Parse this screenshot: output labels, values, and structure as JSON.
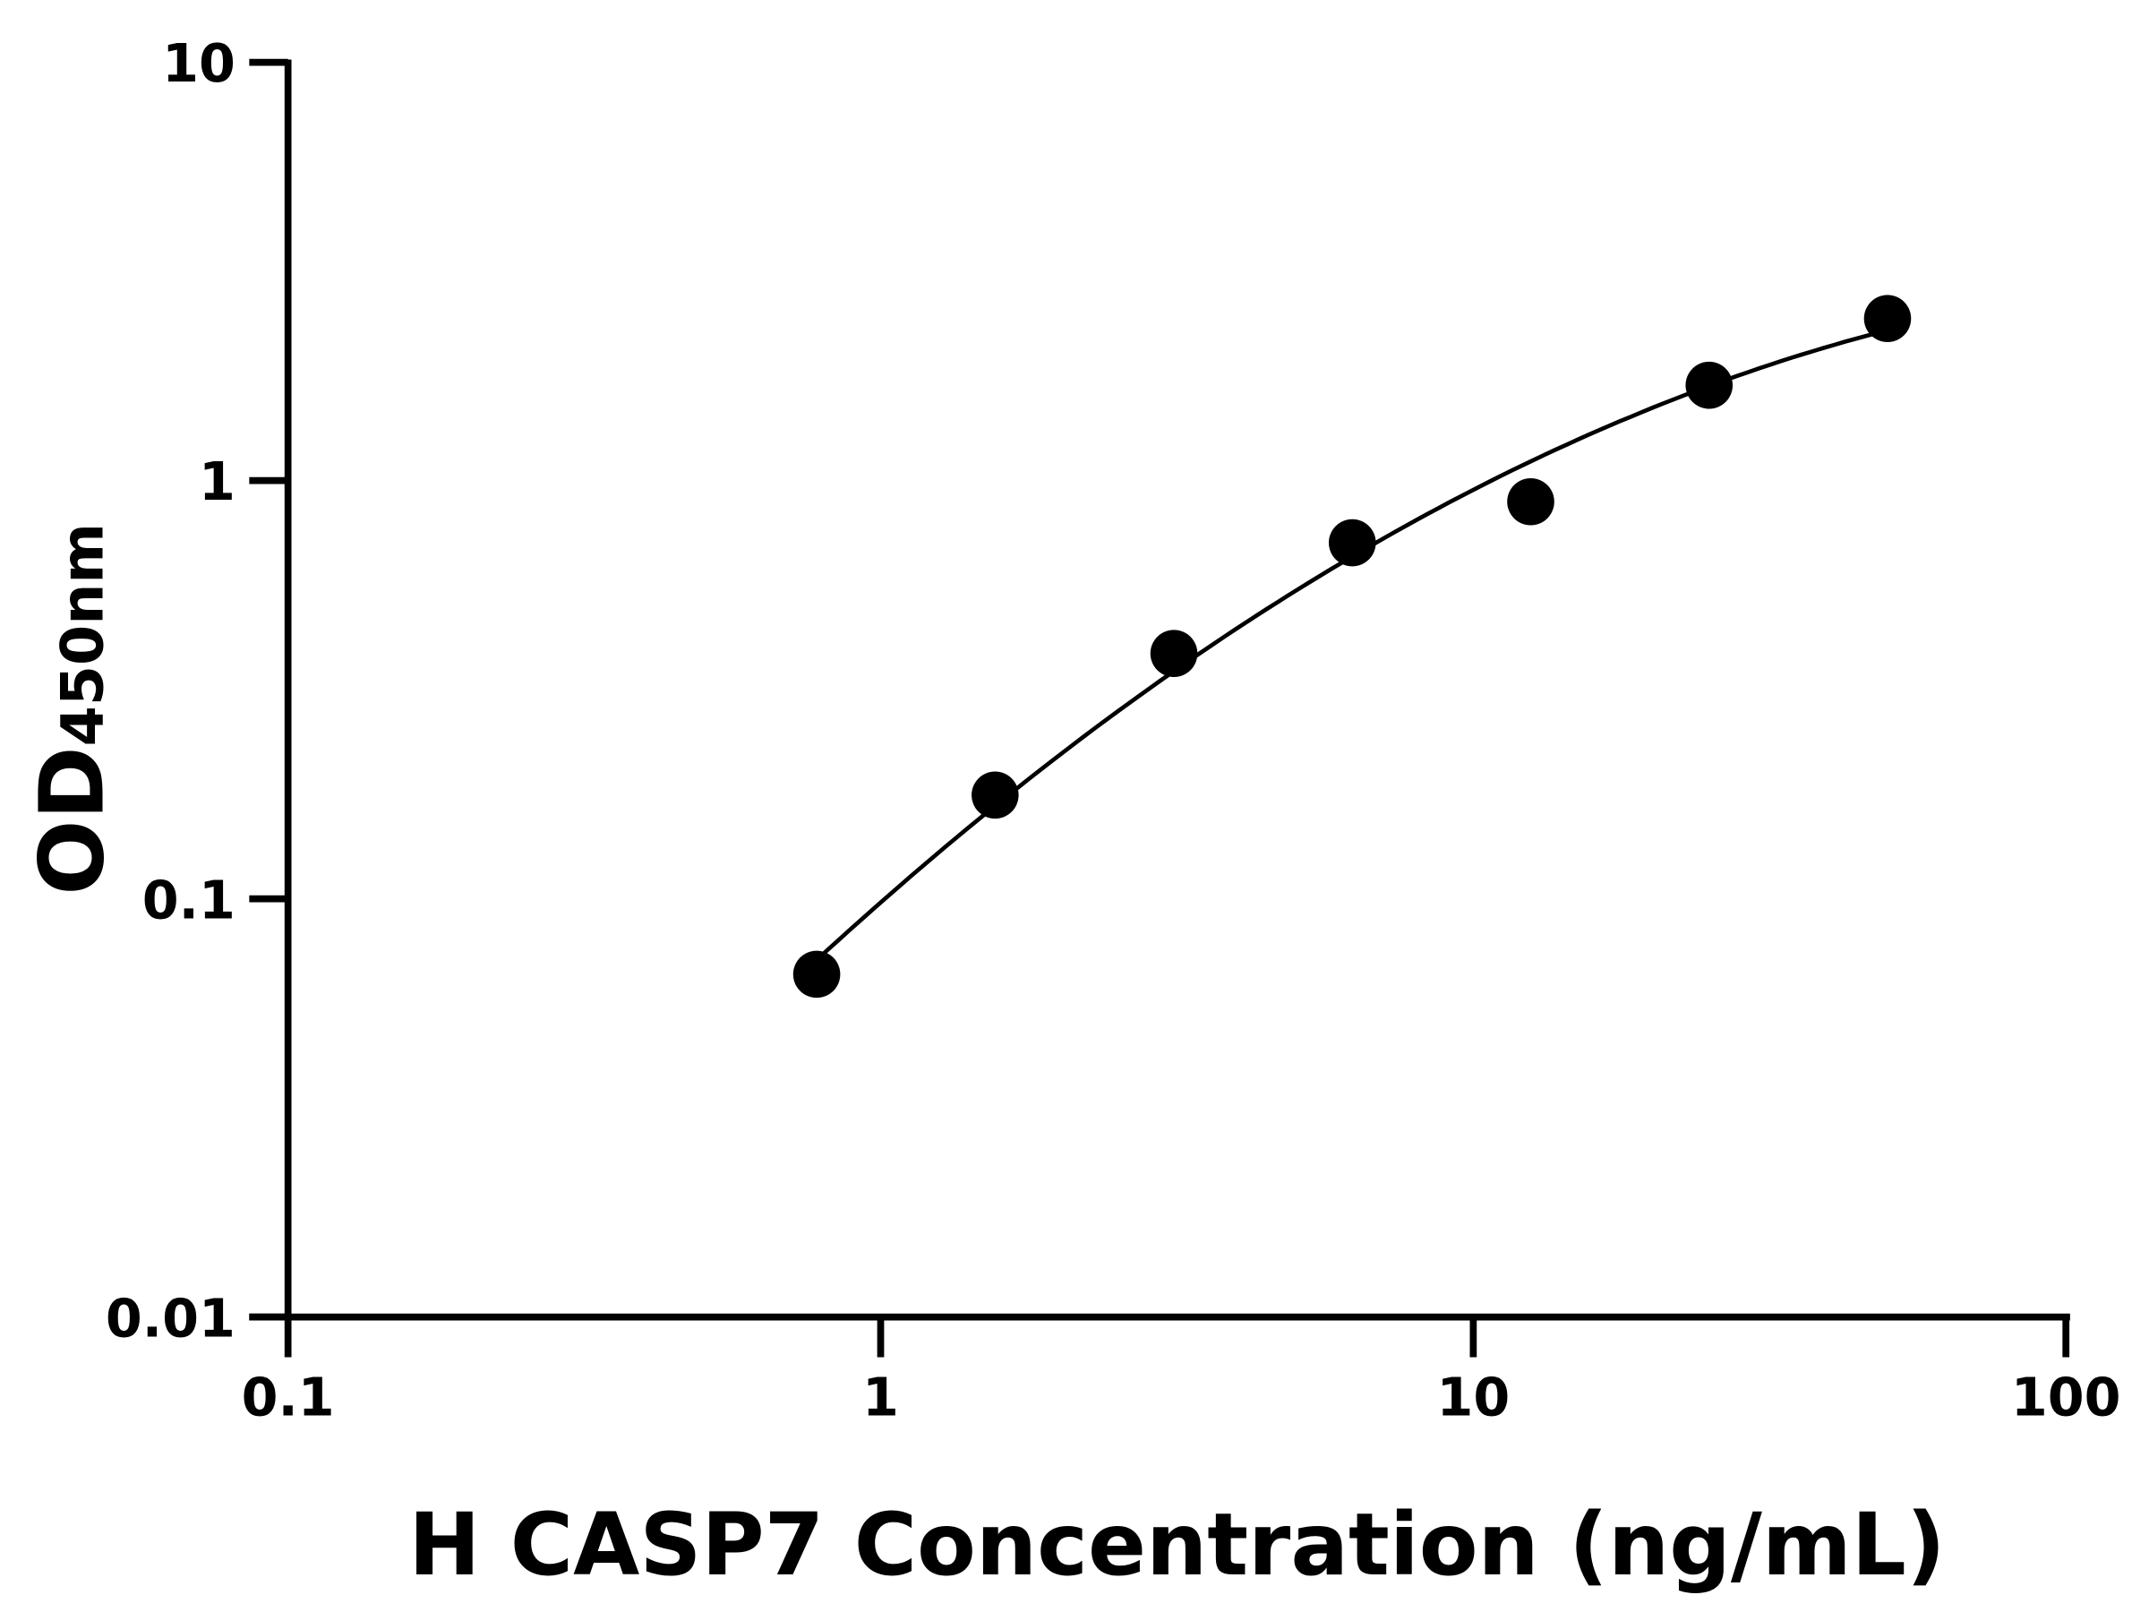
{
  "chart_data": {
    "type": "scatter",
    "title": "",
    "xlabel": "H CASP7 Concentration (ng/mL)",
    "ylabel_main": "OD",
    "ylabel_sub": "450nm",
    "x_scale": "log",
    "y_scale": "log",
    "xlim": [
      0.1,
      100
    ],
    "ylim": [
      0.01,
      10
    ],
    "x_ticks": [
      "0.1",
      "1",
      "10",
      "100"
    ],
    "y_ticks": [
      "0.01",
      "0.1",
      "1",
      "10"
    ],
    "grid": false,
    "fit_curve": true,
    "marker_color": "#000000",
    "x": [
      0.78,
      1.56,
      3.125,
      6.25,
      12.5,
      25,
      50
    ],
    "y": [
      0.066,
      0.177,
      0.386,
      0.71,
      0.89,
      1.69,
      2.44
    ]
  }
}
